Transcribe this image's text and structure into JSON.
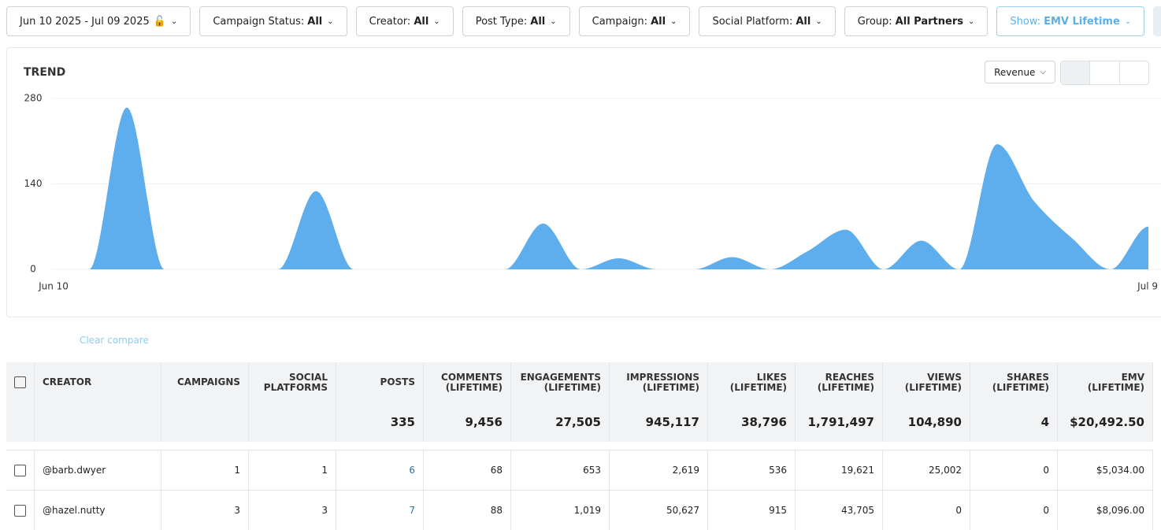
{
  "filters": [
    {
      "text": "Jun 10 2025 - Jul 09 2025"
    },
    {
      "label": "Campaign Status:",
      "value": "All"
    },
    {
      "label": "Creator:",
      "value": "All"
    },
    {
      "label": "Post Type:",
      "value": "All"
    },
    {
      "label": "Campaign:",
      "value": "All"
    },
    {
      "label": "Social Platform:",
      "value": "All"
    },
    {
      "label": "Group:",
      "value": "All Partners"
    },
    {
      "label": "Show:",
      "value": "EMV Lifetime"
    }
  ],
  "chart_data": {
    "type": "area",
    "title": "TREND",
    "metric": "Revenue",
    "color": "#5eaeee",
    "categories": [
      "Jun 10",
      null,
      null,
      null,
      null,
      null,
      null,
      null,
      null,
      null,
      null,
      null,
      null,
      null,
      null,
      null,
      null,
      null,
      null,
      null,
      null,
      null,
      null,
      null,
      null,
      null,
      null,
      null,
      null,
      "Jul 9"
    ],
    "values": [
      0,
      0,
      265,
      0,
      0,
      0,
      0,
      128,
      0,
      0,
      0,
      0,
      0,
      75,
      0,
      18,
      0,
      0,
      20,
      0,
      30,
      65,
      0,
      47,
      0,
      205,
      110,
      50,
      0,
      70
    ],
    "ylim": [
      0,
      280
    ],
    "yticks": [
      0,
      140,
      280
    ],
    "grid": true
  },
  "compare": {
    "clear": "Clear compare"
  },
  "table": {
    "columns": [
      "CREATOR",
      "CAMPAIGNS",
      "SOCIAL\nPLATFORMS",
      "POSTS",
      "COMMENTS\n(LIFETIME)",
      "ENGAGEMENTS\n(LIFETIME)",
      "IMPRESSIONS\n(LIFETIME)",
      "LIKES\n(LIFETIME)",
      "REACHES\n(LIFETIME)",
      "VIEWS\n(LIFETIME)",
      "SHARES\n(LIFETIME)",
      "EMV\n(LIFETIME)"
    ],
    "totals": [
      "335",
      "9,456",
      "27,505",
      "945,117",
      "38,796",
      "1,791,497",
      "104,890",
      "4",
      "$20,492.50"
    ],
    "rows": [
      [
        "@barb.dwyer",
        "1",
        "1",
        "6",
        "68",
        "653",
        "2,619",
        "536",
        "19,621",
        "25,002",
        "0",
        "$5,034.00"
      ],
      [
        "@hazel.nutty",
        "3",
        "3",
        "7",
        "88",
        "1,019",
        "50,627",
        "915",
        "43,705",
        "0",
        "0",
        "$8,096.00"
      ]
    ]
  }
}
